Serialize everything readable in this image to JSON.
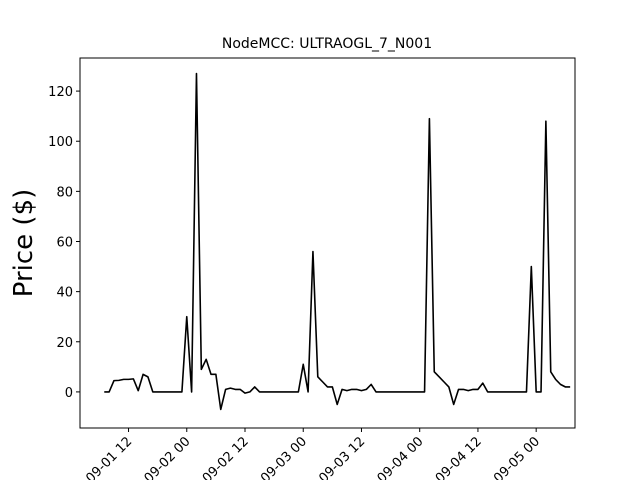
{
  "chart_data": {
    "type": "line",
    "title": "NodeMCC: ULTRAOGL_7_N001",
    "y_label": "Price ($)",
    "color": "#000000",
    "x": [
      "09-01 07",
      "09-01 08",
      "09-01 09",
      "09-01 10",
      "09-01 11",
      "09-01 12",
      "09-01 13",
      "09-01 14",
      "09-01 15",
      "09-01 16",
      "09-01 17",
      "09-01 18",
      "09-01 19",
      "09-01 20",
      "09-01 21",
      "09-01 22",
      "09-01 23",
      "09-02 00",
      "09-02 01",
      "09-02 02",
      "09-02 03",
      "09-02 04",
      "09-02 05",
      "09-02 06",
      "09-02 07",
      "09-02 08",
      "09-02 09",
      "09-02 10",
      "09-02 11",
      "09-02 12",
      "09-02 13",
      "09-02 14",
      "09-02 15",
      "09-02 16",
      "09-02 17",
      "09-02 18",
      "09-02 19",
      "09-02 20",
      "09-02 21",
      "09-02 22",
      "09-02 23",
      "09-03 00",
      "09-03 01",
      "09-03 02",
      "09-03 03",
      "09-03 04",
      "09-03 05",
      "09-03 06",
      "09-03 07",
      "09-03 08",
      "09-03 09",
      "09-03 10",
      "09-03 11",
      "09-03 12",
      "09-03 13",
      "09-03 14",
      "09-03 15",
      "09-03 16",
      "09-03 17",
      "09-03 18",
      "09-03 19",
      "09-03 20",
      "09-03 21",
      "09-03 22",
      "09-03 23",
      "09-04 00",
      "09-04 01",
      "09-04 02",
      "09-04 03",
      "09-04 04",
      "09-04 05",
      "09-04 06",
      "09-04 07",
      "09-04 08",
      "09-04 09",
      "09-04 10",
      "09-04 11",
      "09-04 12",
      "09-04 13",
      "09-04 14",
      "09-04 15",
      "09-04 16",
      "09-04 17",
      "09-04 18",
      "09-04 19",
      "09-04 20",
      "09-04 21",
      "09-04 22",
      "09-04 23",
      "09-05 00",
      "09-05 01",
      "09-05 02",
      "09-05 03",
      "09-05 04",
      "09-05 05",
      "09-05 06",
      "09-05 07"
    ],
    "values": [
      0,
      0,
      4.5,
      4.6,
      5,
      5,
      5.2,
      0.5,
      7,
      6,
      0,
      0,
      0,
      0,
      0,
      0,
      0,
      30,
      0,
      127,
      9,
      13,
      7,
      7,
      -7,
      1,
      1.5,
      1,
      1,
      -0.5,
      0,
      2,
      0,
      0,
      0,
      0,
      0,
      0,
      0,
      0,
      0,
      11,
      0,
      56,
      6,
      4,
      2,
      2,
      -5,
      1,
      0.5,
      1,
      1,
      0.5,
      1,
      3,
      0,
      0,
      0,
      0,
      0,
      0,
      0,
      0,
      0,
      0,
      0,
      109,
      8,
      6,
      4,
      2,
      -5,
      1,
      1,
      0.5,
      1,
      1,
      3.5,
      0,
      0,
      0,
      0,
      0,
      0,
      0,
      0,
      0,
      50,
      0,
      0,
      108,
      8,
      5,
      3,
      2,
      2
    ],
    "xlim": [
      "09-01 02",
      "09-05 08"
    ],
    "xticks": [
      "09-01 12",
      "09-02 00",
      "09-02 12",
      "09-03 00",
      "09-03 12",
      "09-04 00",
      "09-04 12",
      "09-05 00"
    ],
    "ylim": [
      -14.4,
      133.2
    ],
    "yticks": [
      0,
      20,
      40,
      60,
      80,
      100,
      120
    ]
  }
}
